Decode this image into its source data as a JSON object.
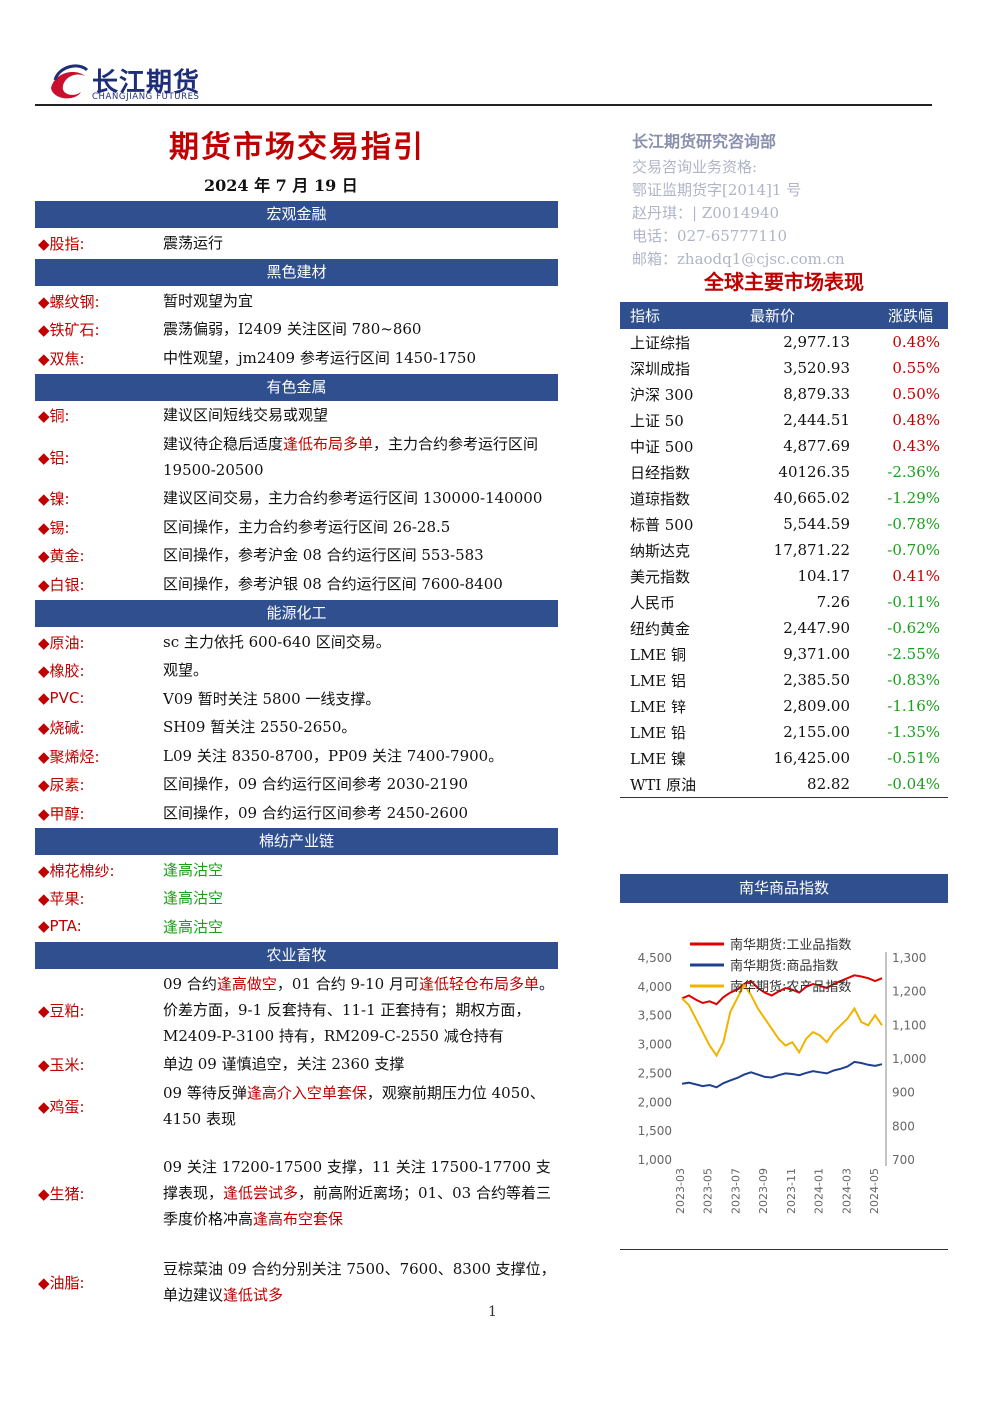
{
  "header": {
    "logo_cn": "长江期货",
    "logo_en": "CHANGJIANG FUTURES",
    "title": "期货市场交易指引",
    "date": "2024 年 7 月 19 日"
  },
  "contact": {
    "dept": "长江期货研究咨询部",
    "line1": "交易咨询业务资格:",
    "line2": "鄂证监期货字[2014]1 号",
    "line3": "赵丹琪：| Z0014940",
    "line4": "电话：027-65777110",
    "line5": "邮箱：zhaodq1@cjsc.com.cn"
  },
  "sections": {
    "macro": "宏观金融",
    "black": "黑色建材",
    "nonferrous": "有色金属",
    "energy": "能源化工",
    "cotton": "棉纺产业链",
    "agri": "农业畜牧"
  },
  "items": {
    "stock": {
      "label": "◆股指:",
      "text": "震荡运行"
    },
    "rebar": {
      "label": "◆螺纹钢:",
      "text": "暂时观望为宜"
    },
    "iron": {
      "label": "◆铁矿石:",
      "text": "震荡偏弱，I2409 关注区间 780~860"
    },
    "coke": {
      "label": "◆双焦:",
      "text": "中性观望，jm2409 参考运行区间 1450-1750"
    },
    "copper": {
      "label": "◆铜:",
      "text": "建议区间短线交易或观望"
    },
    "alu": {
      "label": "◆铝:",
      "pre": "建议待企稳后适度",
      "hl": "逢低布局多单",
      "post": "，主力合约参考运行区间 19500-20500"
    },
    "nickel": {
      "label": "◆镍:",
      "text": "建议区间交易，主力合约参考运行区间 130000-140000"
    },
    "tin": {
      "label": "◆锡:",
      "text": "区间操作，主力合约参考运行区间 26-28.5"
    },
    "gold": {
      "label": "◆黄金:",
      "text": "区间操作，参考沪金 08 合约运行区间 553-583"
    },
    "silver": {
      "label": "◆白银:",
      "text": "区间操作，参考沪银 08 合约运行区间 7600-8400"
    },
    "crude": {
      "label": "◆原油:",
      "text": "sc 主力依托 600-640 区间交易。"
    },
    "rubber": {
      "label": "◆橡胶:",
      "text": "观望。"
    },
    "pvc": {
      "label": "◆PVC:",
      "text": "V09 暂时关注 5800 一线支撑。"
    },
    "caustic": {
      "label": "◆烧碱:",
      "text": "SH09 暂关注 2550-2650。"
    },
    "olefin": {
      "label": "◆聚烯烃:",
      "text": "L09 关注 8350-8700，PP09 关注 7400-7900。"
    },
    "urea": {
      "label": "◆尿素:",
      "text": "区间操作，09 合约运行区间参考 2030-2190"
    },
    "methanol": {
      "label": "◆甲醇:",
      "text": "区间操作，09 合约运行区间参考 2450-2600"
    },
    "cotton": {
      "label": "◆棉花棉纱:",
      "text": "逢高沽空"
    },
    "apple": {
      "label": "◆苹果:",
      "text": "逢高沽空"
    },
    "pta": {
      "label": "◆PTA:",
      "text": "逢高沽空"
    },
    "meal": {
      "label": "◆豆粕:",
      "t1": "09 合约",
      "h1": "逢高做空",
      "t2": "，01 合约 9-10 月可",
      "h2": "逢低轻仓布局多单",
      "t3": "。价差方面，9-1 反套持有、11-1 正套持有；期权方面，M2409-P-3100 持有，RM209-C-2550 减仓持有"
    },
    "corn": {
      "label": "◆玉米:",
      "text": "单边 09 谨慎追空，关注 2360 支撑"
    },
    "egg": {
      "label": "◆鸡蛋:",
      "t1": "09 等待反弹",
      "h1": "逢高介入空单套保",
      "t2": "，观察前期压力位 4050、4150 表现"
    },
    "hog": {
      "label": "◆生猪:",
      "t1": "09 关注 17200-17500 支撑，11 关注 17500-17700 支撑表现，",
      "h1": "逢低尝试多",
      "t2": "，前高附近离场；01、03 合约等着三季度价格冲高",
      "h2": "逢高布空套保"
    },
    "oil": {
      "label": "◆油脂:",
      "t1": "豆棕菜油 09 合约分别关注 7500、7600、8300 支撑位，单边建议",
      "h1": "逢低试多"
    }
  },
  "market": {
    "title": "全球主要市场表现",
    "headers": [
      "指标",
      "最新价",
      "涨跌幅"
    ],
    "rows": [
      {
        "name": "上证综指",
        "price": "2,977.13",
        "change": "0.48%",
        "up": true
      },
      {
        "name": "深圳成指",
        "price": "3,520.93",
        "change": "0.55%",
        "up": true
      },
      {
        "name": "沪深 300",
        "price": "8,879.33",
        "change": "0.50%",
        "up": true
      },
      {
        "name": "上证 50",
        "price": "2,444.51",
        "change": "0.48%",
        "up": true
      },
      {
        "name": "中证 500",
        "price": "4,877.69",
        "change": "0.43%",
        "up": true
      },
      {
        "name": "日经指数",
        "price": "40126.35",
        "change": "-2.36%",
        "up": false
      },
      {
        "name": "道琼指数",
        "price": "40,665.02",
        "change": "-1.29%",
        "up": false
      },
      {
        "name": "标普 500",
        "price": "5,544.59",
        "change": "-0.78%",
        "up": false
      },
      {
        "name": "纳斯达克",
        "price": "17,871.22",
        "change": "-0.70%",
        "up": false
      },
      {
        "name": "美元指数",
        "price": "104.17",
        "change": "0.41%",
        "up": true
      },
      {
        "name": "人民币",
        "price": "7.26",
        "change": "-0.11%",
        "up": false
      },
      {
        "name": "纽约黄金",
        "price": "2,447.90",
        "change": "-0.62%",
        "up": false
      },
      {
        "name": "LME 铜",
        "price": "9,371.00",
        "change": "-2.55%",
        "up": false
      },
      {
        "name": "LME 铝",
        "price": "2,385.50",
        "change": "-0.83%",
        "up": false
      },
      {
        "name": "LME 锌",
        "price": "2,809.00",
        "change": "-1.16%",
        "up": false
      },
      {
        "name": "LME 铅",
        "price": "2,155.00",
        "change": "-1.35%",
        "up": false
      },
      {
        "name": "LME 镍",
        "price": "16,425.00",
        "change": "-0.51%",
        "up": false
      },
      {
        "name": "WTI 原油",
        "price": "82.82",
        "change": "-0.04%",
        "up": false
      }
    ]
  },
  "nanhua": {
    "title": "南华商品指数"
  },
  "colors": {
    "header_blue": "#2f4f8f",
    "red": "#c00000",
    "green": "#1aa01a",
    "series_industrial": "#e00000",
    "series_commodity": "#1f3f8f",
    "series_agri": "#f0b400"
  },
  "chart_data": {
    "type": "line",
    "series": [
      {
        "name": "南华期货:工业品指数",
        "axis": "left",
        "color": "#e00000",
        "values": [
          3800,
          3850,
          3780,
          3720,
          3750,
          3700,
          3820,
          3900,
          3950,
          4050,
          4100,
          3980,
          3900,
          3850,
          3920,
          3980,
          3950,
          3900,
          4000,
          4050,
          4020,
          3980,
          4050,
          4100,
          4150,
          4200,
          4180,
          4150,
          4100,
          4150
        ]
      },
      {
        "name": "南华期货:商品指数",
        "axis": "left",
        "color": "#1f3f8f",
        "values": [
          2320,
          2340,
          2310,
          2280,
          2300,
          2260,
          2330,
          2380,
          2420,
          2480,
          2520,
          2480,
          2440,
          2430,
          2470,
          2500,
          2490,
          2470,
          2510,
          2540,
          2520,
          2500,
          2550,
          2580,
          2620,
          2700,
          2680,
          2650,
          2630,
          2660
        ]
      },
      {
        "name": "南华期货:农产品指数",
        "axis": "right",
        "color": "#f0b400",
        "values": [
          1180,
          1160,
          1120,
          1080,
          1040,
          1010,
          1050,
          1140,
          1180,
          1220,
          1190,
          1150,
          1120,
          1090,
          1060,
          1040,
          1050,
          1020,
          1060,
          1080,
          1070,
          1050,
          1080,
          1100,
          1120,
          1150,
          1110,
          1100,
          1130,
          1100
        ]
      }
    ],
    "x_ticks": [
      "2023-03",
      "2023-05",
      "2023-07",
      "2023-09",
      "2023-11",
      "2024-01",
      "2024-03",
      "2024-05"
    ],
    "y_left_ticks": [
      "4,500",
      "4,000",
      "3,500",
      "3,000",
      "2,500",
      "2,000",
      "1,500",
      "1,000"
    ],
    "y_right_ticks": [
      "1,300",
      "1,200",
      "1,100",
      "1,000",
      "900",
      "800",
      "700"
    ],
    "ylim_left": [
      1000,
      4500
    ],
    "ylim_right": [
      700,
      1300
    ],
    "legend": "top-left"
  },
  "footer": {
    "page": "1"
  }
}
